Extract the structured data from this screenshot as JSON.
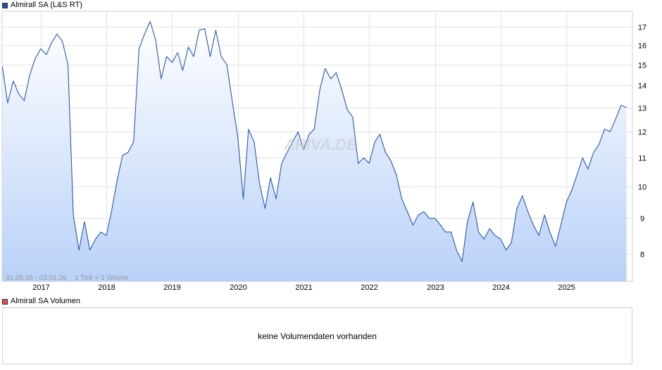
{
  "price_panel": {
    "legend_label": "Almirall SA (L&S RT)",
    "legend_color": "#1f4fa8",
    "watermark": "ARIVA.DE",
    "range_info": "31.05.16 - 03.01.26    1 Tick = 1 Woche",
    "line_color": "#2957b5",
    "fill_top_color": "#ffffff",
    "fill_bottom_color": "#b9d1f8"
  },
  "volume_panel": {
    "legend_label": "Almirall SA Volumen",
    "legend_color": "#d9534f",
    "empty_message": "keine Volumendaten vorhanden"
  },
  "chart_data": {
    "type": "area",
    "title": "Almirall SA (L&S RT)",
    "xlabel": "",
    "ylabel": "",
    "x_range": [
      "2016-05-31",
      "2026-01-03"
    ],
    "y_scale": "log",
    "ylim": [
      7.3,
      17.9
    ],
    "grid": true,
    "legend_position": "top-left",
    "x_tick_labels": [
      "2017",
      "2018",
      "2019",
      "2020",
      "2021",
      "2022",
      "2023",
      "2024",
      "2025"
    ],
    "y_tick_labels": [
      "8",
      "9",
      "10",
      "11",
      "12",
      "13",
      "14",
      "15",
      "16",
      "17"
    ],
    "series": [
      {
        "name": "Almirall SA (L&S RT)",
        "points": [
          [
            "2016-06-01",
            14.9
          ],
          [
            "2016-07-01",
            13.2
          ],
          [
            "2016-08-01",
            14.2
          ],
          [
            "2016-09-01",
            13.6
          ],
          [
            "2016-10-01",
            13.3
          ],
          [
            "2016-11-01",
            14.5
          ],
          [
            "2016-12-01",
            15.3
          ],
          [
            "2017-01-01",
            15.8
          ],
          [
            "2017-02-01",
            15.5
          ],
          [
            "2017-03-01",
            16.1
          ],
          [
            "2017-04-01",
            16.6
          ],
          [
            "2017-05-01",
            16.2
          ],
          [
            "2017-06-01",
            15.0
          ],
          [
            "2017-07-01",
            9.1
          ],
          [
            "2017-08-01",
            8.1
          ],
          [
            "2017-09-01",
            8.9
          ],
          [
            "2017-10-01",
            8.1
          ],
          [
            "2017-11-01",
            8.4
          ],
          [
            "2017-12-01",
            8.6
          ],
          [
            "2018-01-01",
            8.5
          ],
          [
            "2018-02-01",
            9.3
          ],
          [
            "2018-03-01",
            10.2
          ],
          [
            "2018-04-01",
            11.1
          ],
          [
            "2018-05-01",
            11.2
          ],
          [
            "2018-06-01",
            11.6
          ],
          [
            "2018-07-01",
            15.8
          ],
          [
            "2018-08-01",
            16.6
          ],
          [
            "2018-09-01",
            17.3
          ],
          [
            "2018-10-01",
            16.3
          ],
          [
            "2018-11-01",
            14.3
          ],
          [
            "2018-12-01",
            15.4
          ],
          [
            "2019-01-01",
            15.1
          ],
          [
            "2019-02-01",
            15.6
          ],
          [
            "2019-03-01",
            14.7
          ],
          [
            "2019-04-01",
            15.9
          ],
          [
            "2019-05-01",
            15.4
          ],
          [
            "2019-06-01",
            16.8
          ],
          [
            "2019-07-01",
            16.9
          ],
          [
            "2019-08-01",
            15.4
          ],
          [
            "2019-09-01",
            16.8
          ],
          [
            "2019-10-01",
            15.4
          ],
          [
            "2019-11-01",
            15.0
          ],
          [
            "2019-12-01",
            13.3
          ],
          [
            "2020-01-01",
            11.8
          ],
          [
            "2020-02-01",
            9.6
          ],
          [
            "2020-03-01",
            12.1
          ],
          [
            "2020-04-01",
            11.6
          ],
          [
            "2020-05-01",
            10.1
          ],
          [
            "2020-06-01",
            9.3
          ],
          [
            "2020-07-01",
            10.3
          ],
          [
            "2020-08-01",
            9.6
          ],
          [
            "2020-09-01",
            10.8
          ],
          [
            "2020-10-01",
            11.2
          ],
          [
            "2020-11-01",
            11.6
          ],
          [
            "2020-12-01",
            12.0
          ],
          [
            "2021-01-01",
            11.3
          ],
          [
            "2021-02-01",
            11.9
          ],
          [
            "2021-03-01",
            12.1
          ],
          [
            "2021-04-01",
            13.8
          ],
          [
            "2021-05-01",
            14.8
          ],
          [
            "2021-06-01",
            14.3
          ],
          [
            "2021-07-01",
            14.6
          ],
          [
            "2021-08-01",
            13.8
          ],
          [
            "2021-09-01",
            12.9
          ],
          [
            "2021-10-01",
            12.6
          ],
          [
            "2021-11-01",
            10.8
          ],
          [
            "2021-12-01",
            11.0
          ],
          [
            "2022-01-01",
            10.8
          ],
          [
            "2022-02-01",
            11.6
          ],
          [
            "2022-03-01",
            11.9
          ],
          [
            "2022-04-01",
            11.2
          ],
          [
            "2022-05-01",
            10.9
          ],
          [
            "2022-06-01",
            10.4
          ],
          [
            "2022-07-01",
            9.6
          ],
          [
            "2022-08-01",
            9.2
          ],
          [
            "2022-09-01",
            8.8
          ],
          [
            "2022-10-01",
            9.1
          ],
          [
            "2022-11-01",
            9.2
          ],
          [
            "2022-12-01",
            9.0
          ],
          [
            "2023-01-01",
            9.0
          ],
          [
            "2023-02-01",
            8.8
          ],
          [
            "2023-03-01",
            8.6
          ],
          [
            "2023-04-01",
            8.6
          ],
          [
            "2023-05-01",
            8.1
          ],
          [
            "2023-06-01",
            7.8
          ],
          [
            "2023-07-01",
            8.9
          ],
          [
            "2023-08-01",
            9.5
          ],
          [
            "2023-09-01",
            8.6
          ],
          [
            "2023-10-01",
            8.4
          ],
          [
            "2023-11-01",
            8.7
          ],
          [
            "2023-12-01",
            8.5
          ],
          [
            "2024-01-01",
            8.4
          ],
          [
            "2024-02-01",
            8.1
          ],
          [
            "2024-03-01",
            8.3
          ],
          [
            "2024-04-01",
            9.3
          ],
          [
            "2024-05-01",
            9.7
          ],
          [
            "2024-06-01",
            9.2
          ],
          [
            "2024-07-01",
            8.8
          ],
          [
            "2024-08-01",
            8.5
          ],
          [
            "2024-09-01",
            9.1
          ],
          [
            "2024-10-01",
            8.6
          ],
          [
            "2024-11-01",
            8.2
          ],
          [
            "2024-12-01",
            8.8
          ],
          [
            "2025-01-01",
            9.5
          ],
          [
            "2025-02-01",
            9.9
          ],
          [
            "2025-03-01",
            10.4
          ],
          [
            "2025-04-01",
            11.0
          ],
          [
            "2025-05-01",
            10.6
          ],
          [
            "2025-06-01",
            11.2
          ],
          [
            "2025-07-01",
            11.5
          ],
          [
            "2025-08-01",
            12.1
          ],
          [
            "2025-09-01",
            12.0
          ],
          [
            "2025-10-01",
            12.5
          ],
          [
            "2025-11-01",
            13.1
          ],
          [
            "2025-12-01",
            13.0
          ]
        ]
      }
    ]
  }
}
